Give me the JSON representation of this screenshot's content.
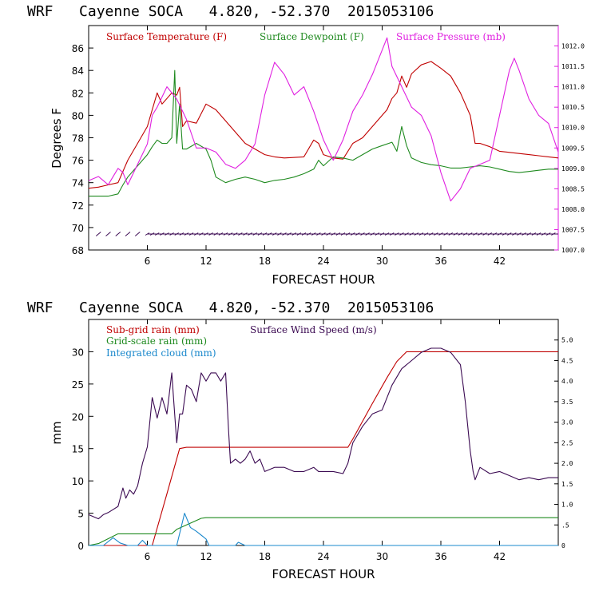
{
  "chart_data": [
    {
      "type": "line",
      "title": "WRF   Cayenne SOCA   4.820, -52.370  2015053106",
      "xlabel": "FORECAST HOUR",
      "ylabel": "Degrees F",
      "xlim": [
        0,
        48
      ],
      "ylim": [
        68,
        88
      ],
      "xticks": [
        6,
        12,
        18,
        24,
        30,
        36,
        42
      ],
      "yticks": [
        68,
        70,
        72,
        74,
        76,
        78,
        80,
        82,
        84,
        86
      ],
      "y2lim": [
        1007.0,
        1012.5
      ],
      "y2ticks": [
        "1007.0",
        "1007.5",
        "1008.0",
        "1008.5",
        "1009.0",
        "1009.5",
        "1010.0",
        "1010.5",
        "1011.0",
        "1011.5",
        "1012.0"
      ],
      "legend": [
        "Surface Temperature (F)",
        "Surface Dewpoint (F)",
        "Surface Pressure (mb)"
      ],
      "series": [
        {
          "name": "Surface Temperature (F)",
          "color": "#c00000",
          "axis": "left",
          "x": [
            0,
            1,
            2,
            3,
            4,
            5,
            6,
            6.5,
            7,
            7.5,
            8,
            8.5,
            9,
            9.3,
            9.6,
            10,
            11,
            12,
            13,
            14,
            15,
            16,
            17,
            18,
            19,
            20,
            22,
            23,
            23.5,
            24,
            25,
            26,
            27,
            28,
            29,
            30,
            30.5,
            31,
            31.5,
            32,
            32.5,
            33,
            34,
            35,
            36,
            37,
            38,
            39,
            39.5,
            40,
            41,
            42,
            43,
            44,
            45,
            46,
            47,
            48
          ],
          "y": [
            73.5,
            73.6,
            73.8,
            74,
            76,
            77.5,
            79,
            80.5,
            82,
            81,
            81.5,
            82,
            81.8,
            82.5,
            79,
            79.5,
            79.3,
            81,
            80.5,
            79.5,
            78.5,
            77.5,
            77,
            76.5,
            76.3,
            76.2,
            76.3,
            77.8,
            77.5,
            76.5,
            76.2,
            76.1,
            77.5,
            78,
            79,
            80,
            80.5,
            81.5,
            82,
            83.5,
            82.5,
            83.7,
            84.5,
            84.8,
            84.2,
            83.5,
            82,
            80,
            77.5,
            77.5,
            77.2,
            76.8,
            76.7,
            76.6,
            76.5,
            76.4,
            76.3,
            76.2
          ]
        },
        {
          "name": "Surface Dewpoint (F)",
          "color": "#1f8a1f",
          "axis": "left",
          "x": [
            0,
            1,
            2,
            3,
            3.5,
            4,
            5,
            6,
            6.5,
            7,
            7.5,
            8,
            8.5,
            8.8,
            9,
            9.3,
            9.6,
            10,
            11,
            12,
            12.5,
            13,
            14,
            15,
            16,
            17,
            18,
            19,
            20,
            21,
            22,
            23,
            23.5,
            24,
            25,
            26,
            27,
            28,
            29,
            30,
            31,
            31.5,
            32,
            32.5,
            33,
            34,
            35,
            36,
            37,
            38,
            39,
            40,
            41,
            42,
            43,
            44,
            45,
            46,
            47,
            48
          ],
          "y": [
            72.8,
            72.8,
            72.8,
            73,
            73.8,
            74.5,
            75.5,
            76.5,
            77.2,
            77.8,
            77.5,
            77.5,
            78,
            84,
            77.5,
            81,
            77,
            77,
            77.5,
            77,
            76,
            74.5,
            74,
            74.3,
            74.5,
            74.3,
            74,
            74.2,
            74.3,
            74.5,
            74.8,
            75.2,
            76,
            75.5,
            76.3,
            76.2,
            76,
            76.5,
            77,
            77.3,
            77.6,
            76.8,
            79,
            77.3,
            76.2,
            75.8,
            75.6,
            75.5,
            75.3,
            75.3,
            75.4,
            75.5,
            75.4,
            75.2,
            75,
            74.9,
            75,
            75.1,
            75.2,
            75.2
          ]
        },
        {
          "name": "Surface Pressure (mb)",
          "color": "#e020e0",
          "axis": "right",
          "x": [
            0,
            1,
            2,
            3,
            3.5,
            4,
            5,
            6,
            6.5,
            7,
            8,
            9,
            10,
            11,
            12,
            13,
            14,
            15,
            16,
            17,
            18,
            19,
            20,
            21,
            22,
            23,
            24,
            25,
            26,
            27,
            28,
            29,
            30,
            30.5,
            31,
            32,
            33,
            34,
            35,
            36,
            37,
            38,
            39,
            40,
            41,
            42,
            43,
            43.5,
            44,
            45,
            46,
            47,
            48
          ],
          "y": [
            1008.7,
            1008.8,
            1008.6,
            1009.0,
            1008.9,
            1008.6,
            1009.1,
            1009.6,
            1010.3,
            1010.5,
            1011.0,
            1010.7,
            1010.2,
            1009.5,
            1009.5,
            1009.4,
            1009.1,
            1009.0,
            1009.2,
            1009.6,
            1010.8,
            1011.6,
            1011.3,
            1010.8,
            1011.0,
            1010.4,
            1009.7,
            1009.2,
            1009.7,
            1010.4,
            1010.8,
            1011.3,
            1011.9,
            1012.2,
            1011.5,
            1011.0,
            1010.5,
            1010.3,
            1009.8,
            1008.9,
            1008.2,
            1008.5,
            1009.0,
            1009.1,
            1009.2,
            1010.3,
            1011.4,
            1011.7,
            1011.4,
            1010.7,
            1010.3,
            1010.1,
            1009.4
          ]
        }
      ]
    },
    {
      "type": "line",
      "title": "WRF   Cayenne SOCA   4.820, -52.370  2015053106",
      "xlabel": "FORECAST HOUR",
      "ylabel": "mm",
      "xlim": [
        0,
        48
      ],
      "ylim": [
        0,
        35
      ],
      "xticks": [
        6,
        12,
        18,
        24,
        30,
        36,
        42
      ],
      "yticks": [
        0,
        5,
        10,
        15,
        20,
        25,
        30
      ],
      "y2lim": [
        0,
        5.5
      ],
      "y2ticks": [
        "0",
        ".5",
        "1.0",
        "1.5",
        "2.0",
        "2.5",
        "3.0",
        "3.5",
        "4.0",
        "4.5",
        "5.0"
      ],
      "legend": [
        "Sub-grid rain (mm)",
        "Grid-scale rain (mm)",
        "Integrated cloud (mm)",
        "Surface Wind Speed (m/s)"
      ],
      "series": [
        {
          "name": "Sub-grid rain (mm)",
          "color": "#c00000",
          "axis": "left",
          "x": [
            0,
            6.5,
            8,
            9.3,
            10,
            26.5,
            27,
            29,
            30.5,
            31.5,
            32.5,
            48
          ],
          "y": [
            0,
            0,
            8,
            15,
            15.2,
            15.2,
            16.5,
            22,
            26,
            28.5,
            30,
            30
          ]
        },
        {
          "name": "Grid-scale rain (mm)",
          "color": "#1f8a1f",
          "axis": "left",
          "x": [
            0,
            1,
            3,
            6,
            8.5,
            9,
            11.5,
            12,
            48
          ],
          "y": [
            0,
            0.3,
            1.8,
            1.8,
            1.8,
            2.5,
            4.2,
            4.3,
            4.3
          ]
        },
        {
          "name": "Integrated cloud (mm)",
          "color": "#1a88cc",
          "axis": "left",
          "x": [
            0,
            1.5,
            2.5,
            3.2,
            4,
            5,
            5.5,
            6,
            9,
            9.8,
            10.4,
            11,
            12,
            12.3,
            13,
            15,
            15.3,
            16,
            48
          ],
          "y": [
            0,
            0,
            1.2,
            0.4,
            0,
            0,
            0.8,
            0,
            0,
            5,
            2.8,
            2.2,
            1,
            0,
            0,
            0,
            0.5,
            0,
            0
          ]
        },
        {
          "name": "Surface Wind Speed (m/s)",
          "color": "#3b0a52",
          "axis": "right",
          "x": [
            0,
            0.5,
            1,
            1.5,
            2,
            3,
            3.5,
            3.8,
            4.2,
            4.6,
            5,
            5.5,
            6,
            6.5,
            7,
            7.5,
            8,
            8.5,
            8.7,
            9,
            9.3,
            9.6,
            10,
            10.5,
            11,
            11.5,
            12,
            12.5,
            13,
            13.5,
            14,
            14.3,
            14.5,
            15,
            15.5,
            16,
            16.5,
            17,
            17.5,
            18,
            19,
            20,
            21,
            22,
            23,
            23.5,
            24,
            25,
            26,
            26.5,
            27,
            28,
            29,
            30,
            30.5,
            31,
            32,
            33,
            34,
            35,
            36,
            37,
            38,
            38.5,
            39,
            39.3,
            39.5,
            40,
            41,
            42,
            43,
            44,
            45,
            46,
            47,
            48
          ],
          "y": [
            0.75,
            0.7,
            0.65,
            0.75,
            0.8,
            0.95,
            1.4,
            1.15,
            1.35,
            1.25,
            1.45,
            2.0,
            2.4,
            3.6,
            3.1,
            3.6,
            3.2,
            4.2,
            3.5,
            2.5,
            3.2,
            3.2,
            3.9,
            3.8,
            3.5,
            4.2,
            4.0,
            4.2,
            4.2,
            4.0,
            4.2,
            2.8,
            2.0,
            2.1,
            2.0,
            2.1,
            2.3,
            2.0,
            2.1,
            1.8,
            1.9,
            1.9,
            1.8,
            1.8,
            1.9,
            1.8,
            1.8,
            1.8,
            1.75,
            2.0,
            2.5,
            2.9,
            3.2,
            3.3,
            3.6,
            3.9,
            4.3,
            4.5,
            4.7,
            4.8,
            4.8,
            4.7,
            4.4,
            3.5,
            2.3,
            1.8,
            1.6,
            1.9,
            1.75,
            1.8,
            1.7,
            1.6,
            1.65,
            1.6,
            1.65,
            1.65
          ]
        }
      ]
    }
  ]
}
